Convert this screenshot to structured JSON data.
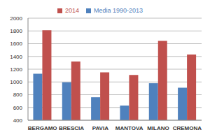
{
  "chart_data": {
    "type": "bar",
    "categories": [
      "BERGAMO",
      "BRESCIA",
      "PAVIA",
      "MANTOVA",
      "MILANO",
      "CREMONA"
    ],
    "series": [
      {
        "name": "Media 1990-2013",
        "color": "#4f81bd",
        "values": [
          1130,
          995,
          760,
          630,
          980,
          910
        ]
      },
      {
        "name": "2014",
        "color": "#c0504d",
        "values": [
          1810,
          1320,
          1150,
          1110,
          1645,
          1430
        ]
      }
    ],
    "ylim": [
      400,
      2000
    ],
    "yticks": [
      400,
      600,
      800,
      1000,
      1200,
      1400,
      1600,
      1800,
      2000
    ],
    "grid": true,
    "legend": "top"
  }
}
